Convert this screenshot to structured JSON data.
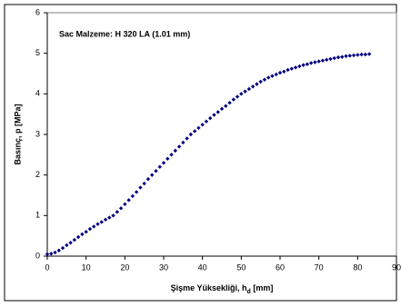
{
  "chart_data": {
    "type": "scatter",
    "annotation": "Sac Malzeme: H 320 LA (1.01 mm)",
    "x_label": "Şişme Yüksekliği, h",
    "x_label_subscript": "d",
    "x_label_unit": " [mm]",
    "y_label": "Basınç, p [MPa]",
    "xlim": [
      0,
      90
    ],
    "xticks": [
      0,
      10,
      20,
      30,
      40,
      50,
      60,
      70,
      80,
      90
    ],
    "ylim": [
      0,
      6
    ],
    "yticks": [
      0,
      1,
      2,
      3,
      4,
      5,
      6
    ],
    "grid": false,
    "series": [
      {
        "color": "#000080",
        "x": [
          0,
          1,
          2,
          3,
          4,
          5,
          6,
          7,
          8,
          9,
          10,
          11,
          12,
          13,
          14,
          15,
          16,
          17,
          18,
          19,
          20,
          21,
          22,
          23,
          24,
          25,
          26,
          27,
          28,
          29,
          30,
          31,
          32,
          33,
          34,
          35,
          36,
          37,
          38,
          39,
          40,
          41,
          42,
          43,
          44,
          45,
          46,
          47,
          48,
          49,
          50,
          51,
          52,
          53,
          54,
          55,
          56,
          57,
          58,
          59,
          60,
          61,
          62,
          63,
          64,
          65,
          66,
          67,
          68,
          69,
          70,
          71,
          72,
          73,
          74,
          75,
          76,
          77,
          78,
          79,
          80,
          81,
          82,
          83
        ],
        "values": [
          0.05,
          0.06,
          0.09,
          0.14,
          0.2,
          0.27,
          0.33,
          0.4,
          0.47,
          0.54,
          0.6,
          0.67,
          0.73,
          0.79,
          0.84,
          0.9,
          0.95,
          1.0,
          1.09,
          1.18,
          1.28,
          1.38,
          1.48,
          1.58,
          1.69,
          1.79,
          1.9,
          2.0,
          2.1,
          2.2,
          2.3,
          2.4,
          2.5,
          2.6,
          2.7,
          2.8,
          2.9,
          3.0,
          3.08,
          3.16,
          3.24,
          3.32,
          3.4,
          3.48,
          3.55,
          3.63,
          3.7,
          3.78,
          3.86,
          3.93,
          4.0,
          4.06,
          4.12,
          4.18,
          4.24,
          4.3,
          4.35,
          4.4,
          4.44,
          4.48,
          4.52,
          4.55,
          4.59,
          4.62,
          4.65,
          4.68,
          4.71,
          4.73,
          4.76,
          4.78,
          4.8,
          4.82,
          4.84,
          4.86,
          4.88,
          4.9,
          4.91,
          4.93,
          4.94,
          4.95,
          4.96,
          4.97,
          4.97,
          4.98
        ]
      }
    ]
  }
}
